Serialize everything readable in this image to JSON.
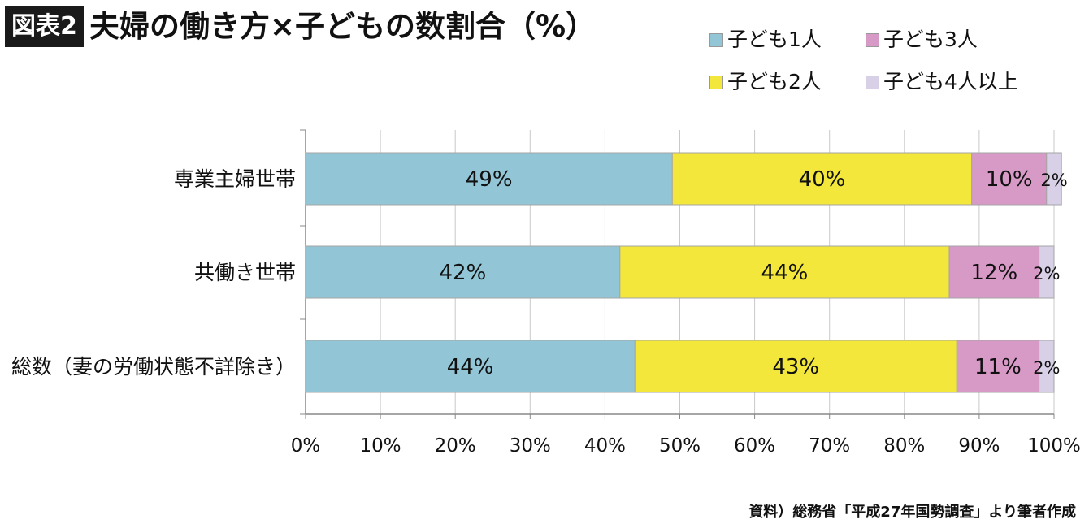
{
  "header": {
    "badge": "図表2",
    "title": "夫婦の働き方×子どもの数割合（%）"
  },
  "source_note": "資料）総務省「平成27年国勢調査」より筆者作成",
  "chart_data": {
    "type": "bar",
    "orientation": "horizontal",
    "stacked": true,
    "percent": true,
    "categories": [
      "専業主婦世帯",
      "共働き世帯",
      "総数（妻の労働状態不詳除き）"
    ],
    "series": [
      {
        "name": "子ども1人",
        "color": "#92c6d6",
        "values": [
          49,
          42,
          44
        ],
        "labels": [
          "49%",
          "42%",
          "44%"
        ]
      },
      {
        "name": "子ども2人",
        "color": "#f2e73a",
        "values": [
          40,
          44,
          43
        ],
        "labels": [
          "40%",
          "44%",
          "43%"
        ]
      },
      {
        "name": "子ども3人",
        "color": "#d799c6",
        "values": [
          10,
          12,
          11
        ],
        "labels": [
          "10%",
          "12%",
          "11%"
        ]
      },
      {
        "name": "子ども4人以上",
        "color": "#d7d0e6",
        "values": [
          2,
          2,
          2
        ],
        "labels": [
          "2%",
          "2%",
          "2%"
        ]
      }
    ],
    "xlim": [
      0,
      100
    ],
    "xticks": [
      "0%",
      "10%",
      "20%",
      "30%",
      "40%",
      "50%",
      "60%",
      "70%",
      "80%",
      "90%",
      "100%"
    ],
    "grid": "vertical",
    "legend_position": "top-right"
  }
}
